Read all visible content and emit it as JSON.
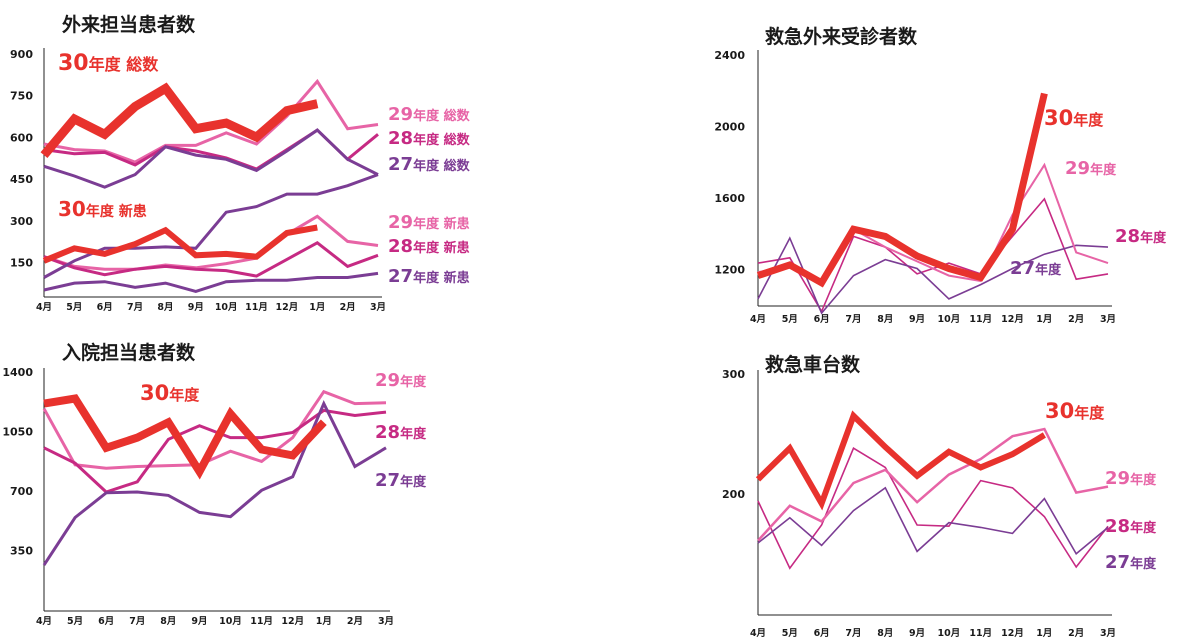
{
  "colors": {
    "y30": "#e8322d",
    "y29": "#e764a6",
    "y28": "#c62a83",
    "y27": "#7b3d94"
  },
  "chart_data": [
    {
      "id": "outpatient",
      "type": "line",
      "title": "外来担当患者数",
      "categories": [
        "4月",
        "5月",
        "6月",
        "7月",
        "8月",
        "9月",
        "10月",
        "11月",
        "12月",
        "1月",
        "2月",
        "3月"
      ],
      "yticks": [
        900,
        750,
        600,
        450,
        300,
        150
      ],
      "ylim": [
        30,
        900
      ],
      "series": [
        {
          "name": "30年度 総数",
          "values": [
            540,
            670,
            615,
            715,
            780,
            635,
            655,
            605,
            700,
            725,
            null,
            null
          ]
        },
        {
          "name": "29年度 総数",
          "values": [
            580,
            560,
            555,
            515,
            575,
            575,
            620,
            580,
            680,
            805,
            635,
            650
          ]
        },
        {
          "name": "28年度 総数",
          "values": [
            560,
            545,
            550,
            505,
            570,
            555,
            530,
            490,
            560,
            630,
            525,
            615
          ]
        },
        {
          "name": "27年度 総数",
          "values": [
            500,
            465,
            425,
            470,
            570,
            540,
            525,
            485,
            555,
            630,
            525,
            470
          ]
        },
        {
          "name": "30年度 新患",
          "values": [
            160,
            205,
            185,
            220,
            270,
            180,
            185,
            175,
            260,
            280,
            null,
            null
          ]
        },
        {
          "name": "29年度 新患",
          "values": [
            175,
            140,
            130,
            130,
            145,
            135,
            150,
            170,
            255,
            320,
            230,
            215
          ]
        },
        {
          "name": "28年度 新患",
          "values": [
            175,
            135,
            110,
            130,
            140,
            130,
            125,
            105,
            165,
            225,
            140,
            180
          ]
        },
        {
          "name": "27年度 新患",
          "values": [
            55,
            80,
            85,
            65,
            80,
            50,
            85,
            90,
            90,
            100,
            100,
            115
          ]
        },
        {
          "name": "",
          "values": [
            100,
            160,
            205,
            205,
            210,
            205,
            335,
            355,
            400,
            400,
            430,
            470
          ]
        }
      ]
    },
    {
      "id": "inpatient",
      "type": "line",
      "title": "入院担当患者数",
      "categories": [
        "4月",
        "5月",
        "6月",
        "7月",
        "8月",
        "9月",
        "10月",
        "11月",
        "12月",
        "1月",
        "2月",
        "3月"
      ],
      "yticks": [
        1400,
        1050,
        700,
        350
      ],
      "ylim": [
        0,
        1400
      ],
      "series": [
        {
          "name": "30年度",
          "values": [
            1220,
            1250,
            960,
            1020,
            1110,
            820,
            1160,
            950,
            915,
            1110,
            null,
            null
          ]
        },
        {
          "name": "29年度",
          "values": [
            1190,
            860,
            840,
            850,
            855,
            860,
            940,
            880,
            1020,
            1290,
            1220,
            1225
          ]
        },
        {
          "name": "28年度",
          "values": [
            960,
            870,
            700,
            760,
            1010,
            1090,
            1020,
            1020,
            1050,
            1180,
            1150,
            1170
          ]
        },
        {
          "name": "27年度",
          "values": [
            270,
            550,
            695,
            700,
            680,
            580,
            555,
            710,
            790,
            1220,
            850,
            960
          ]
        }
      ]
    },
    {
      "id": "er-outpatient",
      "type": "line",
      "title": "救急外来受診者数",
      "categories": [
        "4月",
        "5月",
        "6月",
        "7月",
        "8月",
        "9月",
        "10月",
        "11月",
        "12月",
        "1月",
        "2月",
        "3月"
      ],
      "yticks": [
        2400,
        2000,
        1600,
        1200
      ],
      "ylim": [
        1000,
        2400
      ],
      "series": [
        {
          "name": "30年度",
          "values": [
            1170,
            1230,
            1130,
            1430,
            1390,
            1280,
            1210,
            1160,
            1430,
            2190,
            null,
            null
          ]
        },
        {
          "name": "29年度",
          "values": [
            1190,
            1220,
            1120,
            1430,
            1330,
            1250,
            1170,
            1140,
            1510,
            1790,
            1300,
            1240
          ]
        },
        {
          "name": "28年度",
          "values": [
            1240,
            1270,
            970,
            1390,
            1330,
            1180,
            1240,
            1180,
            1390,
            1600,
            1150,
            1180
          ]
        },
        {
          "name": "27年度",
          "values": [
            1040,
            1380,
            960,
            1170,
            1260,
            1210,
            1040,
            1120,
            1210,
            1290,
            1340,
            1330
          ]
        }
      ]
    },
    {
      "id": "ambulance",
      "type": "line",
      "title": "救急車台数",
      "categories": [
        "4月",
        "5月",
        "6月",
        "7月",
        "8月",
        "9月",
        "10月",
        "11月",
        "12月",
        "1月",
        "2月",
        "3月"
      ],
      "yticks": [
        300,
        200
      ],
      "ylim": [
        100,
        300
      ],
      "series": [
        {
          "name": "30年度",
          "values": [
            213,
            239,
            193,
            266,
            240,
            216,
            236,
            223,
            234,
            250,
            null,
            null
          ]
        },
        {
          "name": "29年度",
          "values": [
            162,
            191,
            178,
            210,
            221,
            194,
            217,
            230,
            249,
            255,
            202,
            207
          ]
        },
        {
          "name": "28年度",
          "values": [
            195,
            139,
            175,
            239,
            223,
            175,
            174,
            212,
            206,
            182,
            140,
            174
          ]
        },
        {
          "name": "27年度",
          "values": [
            160,
            181,
            158,
            187,
            206,
            153,
            177,
            173,
            168,
            197,
            151,
            173
          ]
        }
      ]
    }
  ]
}
